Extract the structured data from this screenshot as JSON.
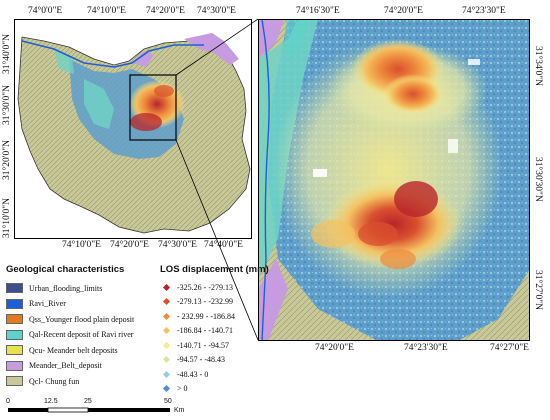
{
  "left_map": {
    "top_ticks": [
      "74°0'0\"E",
      "74°10'0\"E",
      "74°20'0\"E",
      "74°30'0\"E"
    ],
    "bottom_ticks": [
      "74°10'0\"E",
      "74°20'0\"E",
      "74°30'0\"E",
      "74°40'0\"E"
    ],
    "left_ticks": [
      "31°40'0\"N",
      "31°30'0\"N",
      "31°20'0\"N",
      "31°10'0\"N"
    ]
  },
  "right_map": {
    "top_ticks": [
      "74°16'30\"E",
      "74°20'0\"E",
      "74°23'30\"E"
    ],
    "bottom_ticks": [
      "74°20'0\"E",
      "74°23'30\"E",
      "74°27'0\"E"
    ],
    "right_ticks": [
      "31°34'0\"N",
      "31°30'30\"N",
      "31°27'0\"N"
    ]
  },
  "geological_legend": {
    "title": "Geological characteristics",
    "items": [
      {
        "label": "Urban_flooding_limits",
        "color": "#3a4f8c"
      },
      {
        "label": "Ravi_River",
        "color": "#1e5fd6"
      },
      {
        "label": "Qss_Younger flood plain deposit",
        "color": "#e07b1f"
      },
      {
        "label": "Qal-Recent deposit of Ravi river",
        "color": "#5fd3c9"
      },
      {
        "label": "Qcu- Meander belt deposits",
        "color": "#e8e24a"
      },
      {
        "label": "Meander_Belt_deposit",
        "color": "#c79be0"
      },
      {
        "label": "Qcl- Chung fun",
        "color": "#c9c89a"
      }
    ]
  },
  "los_legend": {
    "title": "LOS displacement (mm)",
    "items": [
      {
        "label": "-325.26 - -279.13",
        "color": "#b8242a"
      },
      {
        "label": "-279.13 - -232.99",
        "color": "#d9502e"
      },
      {
        "label": "- 232.99 - -186.84",
        "color": "#ee8a3c"
      },
      {
        "label": "-186.84 - -140.71",
        "color": "#f4c060"
      },
      {
        "label": "-140.71 - -94.57",
        "color": "#f6ea8c"
      },
      {
        "label": "-94.57 - -48.43",
        "color": "#d8e8a0"
      },
      {
        "label": "-48.43 - 0",
        "color": "#9ccbe0"
      },
      {
        "label": "> 0",
        "color": "#4f8fc8"
      }
    ]
  },
  "scale_bar": {
    "ticks": [
      "0",
      "12.5",
      "25",
      "50"
    ],
    "unit": "Km"
  }
}
